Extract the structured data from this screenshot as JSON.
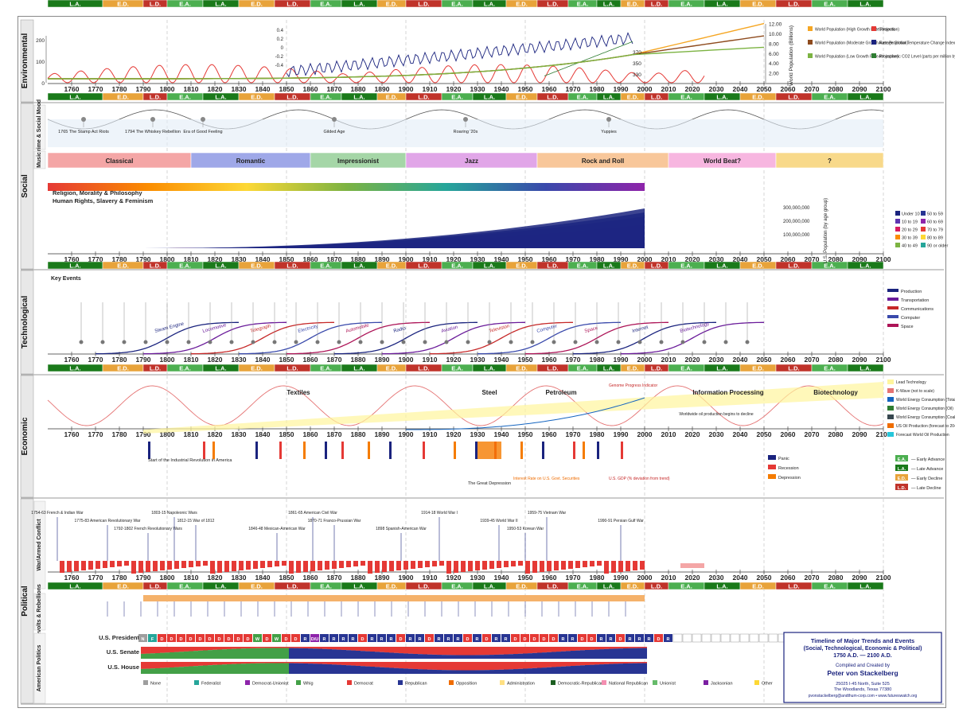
{
  "chart_data": {
    "type": "timeline",
    "title": "Timeline of Major Trends and Events (Social, Technological, Economic & Political) 1750 A.D. — 2100 A.D.",
    "credit": {
      "compiled_by": "Compiled and Created by",
      "author": "Peter von Stackelberg",
      "address1": "25025 I-45 North, Suite 525",
      "address2": "The Woodlands, Texas  77380",
      "contact": "pvonstackelberg@andthum-corp.com  •  www.futureswatch.org"
    },
    "x_range": [
      1750,
      2100
    ],
    "decade_ticks": [
      1760,
      1770,
      1780,
      1790,
      1800,
      1810,
      1820,
      1830,
      1840,
      1850,
      1860,
      1870,
      1880,
      1890,
      1900,
      1910,
      1920,
      1930,
      1940,
      1950,
      1960,
      1970,
      1980,
      1990,
      2000,
      2010,
      2020,
      2030,
      2040,
      2050,
      2060,
      2070,
      2080,
      2090,
      2100
    ],
    "phase_band": [
      {
        "label": "L.A.",
        "start": 1750,
        "end": 1773
      },
      {
        "label": "E.D.",
        "start": 1773,
        "end": 1790
      },
      {
        "label": "L.D.",
        "start": 1790,
        "end": 1800
      },
      {
        "label": "E.A.",
        "start": 1800,
        "end": 1815
      },
      {
        "label": "L.A.",
        "start": 1815,
        "end": 1830
      },
      {
        "label": "E.D.",
        "start": 1830,
        "end": 1845
      },
      {
        "label": "L.D.",
        "start": 1845,
        "end": 1860
      },
      {
        "label": "E.A.",
        "start": 1860,
        "end": 1873
      },
      {
        "label": "L.A.",
        "start": 1873,
        "end": 1888
      },
      {
        "label": "E.D.",
        "start": 1888,
        "end": 1900
      },
      {
        "label": "L.D.",
        "start": 1900,
        "end": 1915
      },
      {
        "label": "E.A.",
        "start": 1915,
        "end": 1928
      },
      {
        "label": "L.A.",
        "start": 1928,
        "end": 1942
      },
      {
        "label": "E.D.",
        "start": 1942,
        "end": 1955
      },
      {
        "label": "L.D.",
        "start": 1955,
        "end": 1968
      },
      {
        "label": "E.A.",
        "start": 1968,
        "end": 1980
      },
      {
        "label": "L.A.",
        "start": 1980,
        "end": 1990
      },
      {
        "label": "E.D.",
        "start": 1990,
        "end": 2000
      },
      {
        "label": "L.D.",
        "start": 2000,
        "end": 2010
      },
      {
        "label": "E.A.",
        "start": 2010,
        "end": 2025
      },
      {
        "label": "L.A.",
        "start": 2025,
        "end": 2040
      },
      {
        "label": "E.D.",
        "start": 2040,
        "end": 2055
      },
      {
        "label": "L.D.",
        "start": 2055,
        "end": 2070
      },
      {
        "label": "E.A.",
        "start": 2070,
        "end": 2085
      },
      {
        "label": "L.A.",
        "start": 2085,
        "end": 2100
      }
    ],
    "phase_colors": {
      "L.A.": "#1a7a1a",
      "E.D.": "#e8a33a",
      "L.D.": "#c0332a",
      "E.A.": "#4caf50"
    },
    "section_labels": [
      "Environmental",
      "Social",
      "Technological",
      "Economic",
      "Political"
    ],
    "sub_labels": [
      "Crime & Social Mood",
      "Music",
      "War/Armed Conflict",
      "Revolts & Rebellions",
      "American Politics"
    ],
    "music_eras": [
      {
        "label": "Classical",
        "start": 1750,
        "end": 1810,
        "color": "#f4a6a6"
      },
      {
        "label": "Romantic",
        "start": 1810,
        "end": 1860,
        "color": "#9fa8e8"
      },
      {
        "label": "Impressionist",
        "start": 1860,
        "end": 1900,
        "color": "#a5d6a7"
      },
      {
        "label": "Jazz",
        "start": 1900,
        "end": 1955,
        "color": "#e1a6e8"
      },
      {
        "label": "Rock and Roll",
        "start": 1955,
        "end": 2010,
        "color": "#f8c79a"
      },
      {
        "label": "World Beat?",
        "start": 2010,
        "end": 2055,
        "color": "#f7b6e0"
      },
      {
        "label": "?",
        "start": 2055,
        "end": 2100,
        "color": "#f8d98a"
      }
    ],
    "environmental_legend": [
      {
        "label": "World Population (High Growth Rate Projection)",
        "color": "#f5a623"
      },
      {
        "label": "Sunspots",
        "color": "#e53935"
      },
      {
        "label": "World Population (Moderate Growth Rate Projection)",
        "color": "#8e4b1e"
      },
      {
        "label": "Average Global Temperature Change Index (1943 = 0)",
        "color": "#1a237e"
      },
      {
        "label": "World Population (Low Growth Rate Projection)",
        "color": "#7cb342"
      },
      {
        "label": "Atmospheric CO2 Level (parts per million by volume)",
        "color": "#2e7d32"
      }
    ],
    "env_axis_left": [
      "0",
      "100",
      "200"
    ],
    "env_axis_right": [
      "2.00",
      "4.00",
      "6.00",
      "8.00",
      "10.00",
      "12.00"
    ],
    "env_axis_right_label": "World Population (Billions)",
    "env_co2_ticks": [
      "330",
      "350",
      "370"
    ],
    "env_temp_ticks": [
      "0.4",
      "0.2",
      "0",
      "-0.2",
      "-0.4"
    ],
    "social_headings": [
      "Religion, Morality & Philosophy",
      "Human Rights, Slavery & Feminism"
    ],
    "population_axis": [
      "300,000,000",
      "200,000,000",
      "100,000,000"
    ],
    "population_axis_label": "U.S. Population (by age group)",
    "population_legend": [
      "Under 10",
      "50 to 59",
      "10 to 19",
      "60 to 69",
      "20 to 29",
      "70 to 79",
      "30 to 39",
      "80 to 89",
      "40 to 49",
      "90 or older"
    ],
    "tech_legend": [
      {
        "label": "Production",
        "color": "#1a237e"
      },
      {
        "label": "Transportation",
        "color": "#6a1b9a"
      },
      {
        "label": "Communications",
        "color": "#c62828"
      },
      {
        "label": "Computer",
        "color": "#3949ab"
      },
      {
        "label": "Space",
        "color": "#ad1457"
      }
    ],
    "tech_waves": [
      "Steam Engine",
      "Locomotive",
      "Telegraph",
      "Electricity",
      "Automobile",
      "Radio",
      "Aviation",
      "Television",
      "Computer",
      "Space",
      "Internet",
      "Biotechnology"
    ],
    "economic_legend": [
      {
        "label": "Lead Technology",
        "color": "#fff59d"
      },
      {
        "label": "K-Wave (not to scale)",
        "color": "#e57373"
      },
      {
        "label": "World Energy Consumption (Total)",
        "color": "#1565c0"
      },
      {
        "label": "World Energy Consumption (Oil)",
        "color": "#2e7d32"
      },
      {
        "label": "World Energy Consumption (Coal)",
        "color": "#37474f"
      },
      {
        "label": "US Oil Production (forecast to 2040)",
        "color": "#ef6c00"
      },
      {
        "label": "Forecast World Oil Production",
        "color": "#26c6da"
      }
    ],
    "economic_tech_labels": [
      "Textiles",
      "Steel",
      "Petroleum",
      "Information Processing",
      "Biotechnology"
    ],
    "economic_notes": [
      "Start of the Industrial Revolution in America",
      "Interest Rate on U.S. Govt. Securities",
      "U.S. GDP (% deviation from trend)",
      "The Great Depression",
      "Genome Progress Indicator",
      "Worldwide oil production begins to decline"
    ],
    "economic_cycle_legend": [
      {
        "label": "Panic",
        "color": "#1a237e"
      },
      {
        "label": "Recession",
        "color": "#e53935"
      },
      {
        "label": "Depression",
        "color": "#f57c00"
      }
    ],
    "phase_legend": [
      {
        "code": "E.A.",
        "label": "Early Advance",
        "color": "#4caf50"
      },
      {
        "code": "L.A.",
        "label": "Late Advance",
        "color": "#1a7a1a"
      },
      {
        "code": "E.D.",
        "label": "Early Decline",
        "color": "#e8a33a"
      },
      {
        "code": "L.D.",
        "label": "Late Decline",
        "color": "#c0332a"
      }
    ],
    "presidents_label": "U.S. President",
    "senate_label": "U.S. Senate",
    "house_label": "U.S. House",
    "president_parties": [
      "N",
      "F",
      "D",
      "D",
      "D",
      "D",
      "D",
      "D",
      "D",
      "D",
      "D",
      "D",
      "W",
      "D",
      "W",
      "D",
      "D",
      "R",
      "D/U",
      "R",
      "R",
      "R",
      "R",
      "D",
      "R",
      "R",
      "R",
      "D",
      "R",
      "R",
      "D",
      "R",
      "R",
      "R",
      "D",
      "R",
      "D",
      "R",
      "R",
      "D",
      "D",
      "D",
      "D",
      "D",
      "R",
      "R",
      "D",
      "D",
      "R",
      "R",
      "D",
      "R",
      "R",
      "R",
      "D",
      "R"
    ],
    "party_legend": [
      "None",
      "Federalist",
      "Democrat-Unionist",
      "Whig",
      "Democrat",
      "Republican",
      "Opposition",
      "Administration",
      "Democratic-Republican",
      "National Republican",
      "Unionist",
      "Jacksonian",
      "Other"
    ],
    "party_colors": {
      "N": "#9e9e9e",
      "F": "#26a69a",
      "D": "#e53935",
      "W": "#43a047",
      "R": "#283593",
      "D/U": "#8e24aa"
    },
    "war_events": [
      {
        "year": 1754,
        "label": "1754-63 French & Indian War"
      },
      {
        "year": 1775,
        "label": "1775-83 American Revolutionary War"
      },
      {
        "year": 1792,
        "label": "1792-1802 French Revolutionary Wars"
      },
      {
        "year": 1803,
        "label": "1803-15 Napoleonic Wars"
      },
      {
        "year": 1812,
        "label": "1812-15 War of 1812"
      },
      {
        "year": 1846,
        "label": "1846-48 Mexican-American War"
      },
      {
        "year": 1861,
        "label": "1861-65 American Civil War"
      },
      {
        "year": 1870,
        "label": "1870-71 Franco-Prussian War"
      },
      {
        "year": 1898,
        "label": "1898 Spanish-American War"
      },
      {
        "year": 1914,
        "label": "1914-18 World War I"
      },
      {
        "year": 1939,
        "label": "1939-45 World War II"
      },
      {
        "year": 1950,
        "label": "1950-53 Korean War"
      },
      {
        "year": 1959,
        "label": "1959-75 Vietnam War"
      },
      {
        "year": 1990,
        "label": "1990-91 Persian Gulf War"
      }
    ],
    "music_axis_note": "",
    "crime_events": [
      {
        "year": 1765,
        "label": "1765 The Stamp Act Riots"
      },
      {
        "year": 1794,
        "label": "1794 The Whiskey Rebellion"
      },
      {
        "year": 1815,
        "label": "Era of Good Feeling"
      },
      {
        "year": 1870,
        "label": "Gilded Age"
      },
      {
        "year": 1925,
        "label": "Roaring '20s"
      },
      {
        "year": 1985,
        "label": "Yuppies"
      }
    ]
  }
}
